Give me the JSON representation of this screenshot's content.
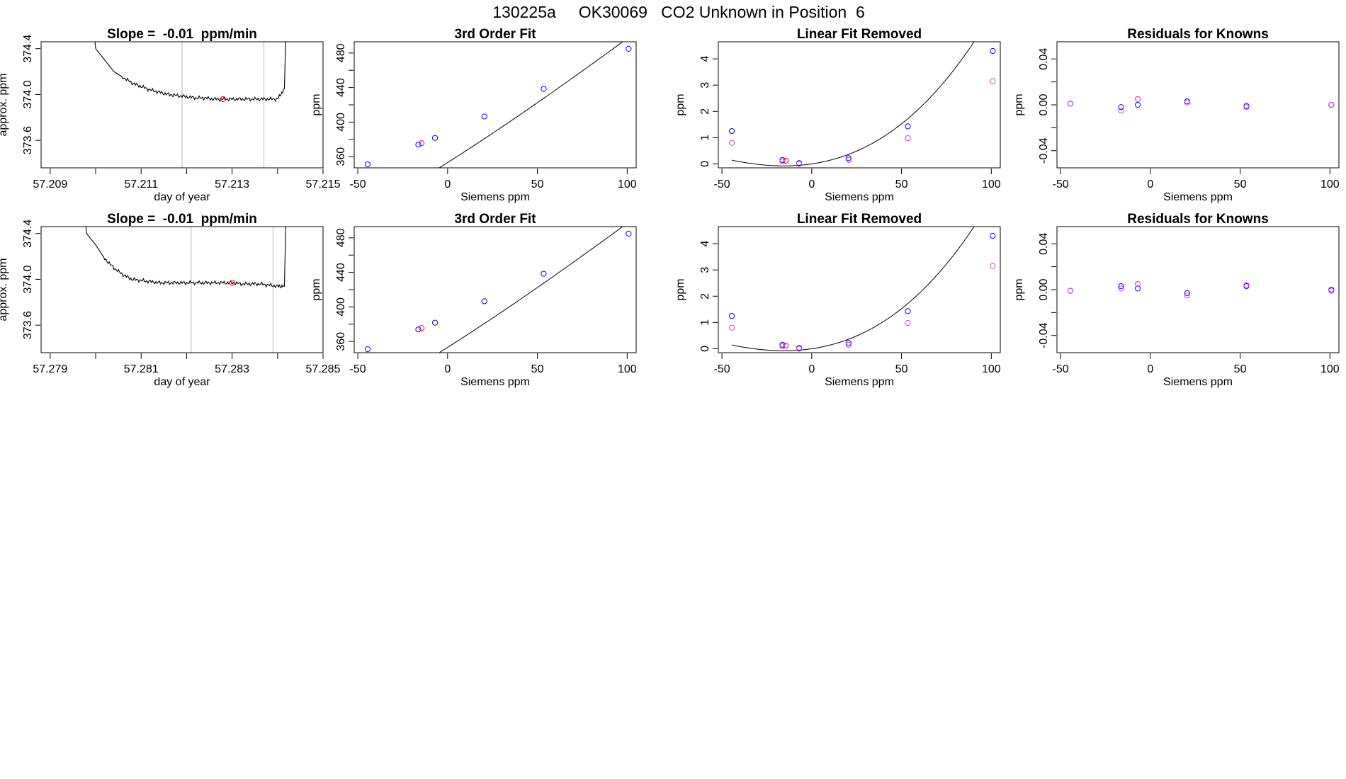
{
  "figure": {
    "title": "130225a     OK30069   CO2 Unknown in Position  6"
  },
  "chart_data": [
    {
      "type": "line",
      "title": "Slope =  -0.01  ppm/min",
      "xlabel": "day of year",
      "ylabel": "approx. ppm",
      "xlim": [
        57.2088,
        57.215
      ],
      "ylim": [
        373.36,
        374.46
      ],
      "xticks": [
        57.209,
        57.21,
        57.211,
        57.212,
        57.213,
        57.214,
        57.215
      ],
      "xticklabels": [
        "57.209",
        "",
        "57.211",
        "",
        "57.213",
        "",
        "57.215"
      ],
      "yticks": [
        373.6,
        374.0,
        374.4
      ],
      "yticklabels": [
        "373.6",
        "374.0",
        "374.4"
      ],
      "vlines": [
        57.2119,
        57.2137
      ],
      "trace": [
        [
          57.2099,
          374.8
        ],
        [
          57.21,
          374.4
        ],
        [
          57.2102,
          374.3
        ],
        [
          57.2104,
          374.2
        ],
        [
          57.2106,
          374.15
        ],
        [
          57.2108,
          374.1
        ],
        [
          57.211,
          374.07
        ],
        [
          57.2112,
          374.04
        ],
        [
          57.2114,
          374.02
        ],
        [
          57.2116,
          374.0
        ],
        [
          57.2118,
          373.99
        ],
        [
          57.212,
          373.98
        ],
        [
          57.2122,
          373.97
        ],
        [
          57.2124,
          373.97
        ],
        [
          57.2126,
          373.96
        ],
        [
          57.2128,
          373.96
        ],
        [
          57.213,
          373.96
        ],
        [
          57.2132,
          373.96
        ],
        [
          57.2134,
          373.96
        ],
        [
          57.2136,
          373.96
        ],
        [
          57.2138,
          373.96
        ],
        [
          57.214,
          373.96
        ],
        [
          57.21415,
          374.05
        ],
        [
          57.2142,
          374.8
        ]
      ],
      "highlight": [
        [
          57.2128,
          373.96
        ]
      ],
      "colors": {
        "line": "#000000",
        "vline": "#bbbbbb",
        "highlight": "#ff0000"
      }
    },
    {
      "type": "scatter",
      "title": "3rd Order Fit",
      "xlabel": "Siemens ppm",
      "ylabel": "ppm",
      "xlim": [
        -52,
        105
      ],
      "ylim": [
        347,
        493
      ],
      "xticks": [
        -50,
        0,
        50,
        100
      ],
      "xticklabels": [
        "-50",
        "0",
        "50",
        "100"
      ],
      "yticks": [
        340,
        360,
        380,
        400,
        420,
        440,
        460,
        480
      ],
      "yticklabels": [
        "",
        "360",
        "",
        "400",
        "",
        "440",
        "",
        "480"
      ],
      "fit_coef": [
        353.11,
        1.32,
        0.0015,
        -3.3e-06
      ],
      "series": [
        {
          "name": "",
          "color": "#0000ff",
          "x": [
            -44.5,
            -16.3,
            -7.0,
            20.5,
            53.5,
            100.8
          ],
          "y": [
            351.0,
            373.9,
            381.7,
            406.5,
            438.4,
            484.9
          ]
        },
        {
          "name": "",
          "color": "#ff0000",
          "x": [
            -14.5
          ],
          "y": [
            375.5
          ]
        }
      ]
    },
    {
      "type": "scatter",
      "title": "Linear Fit Removed",
      "xlabel": "Siemens ppm",
      "ylabel": "ppm",
      "xlim": [
        -52,
        105
      ],
      "ylim": [
        -0.15,
        4.65
      ],
      "xticks": [
        -50,
        0,
        50,
        100
      ],
      "xticklabels": [
        "-50",
        "0",
        "50",
        "100"
      ],
      "yticks": [
        0,
        1,
        2,
        3,
        4
      ],
      "yticklabels": [
        "0",
        "1",
        "2",
        "3",
        "4"
      ],
      "fit_coef": [
        0.0,
        0.01,
        0.00035,
        1.2e-06
      ],
      "series": [
        {
          "name": "",
          "color": "#0000ff",
          "x": [
            -44.5,
            -16.3,
            -7.0,
            20.5,
            53.5,
            100.8
          ],
          "y": [
            1.25,
            0.15,
            0.03,
            0.22,
            1.43,
            4.3
          ]
        },
        {
          "name": "",
          "color": "#dd33dd",
          "x": [
            -44.5,
            -16.3,
            -7.0,
            20.5,
            53.5,
            100.8
          ],
          "y": [
            0.8,
            0.1,
            0.0,
            0.15,
            0.98,
            3.15
          ]
        },
        {
          "name": "",
          "color": "#ff0000",
          "x": [
            -14.5
          ],
          "y": [
            0.12
          ]
        }
      ]
    },
    {
      "type": "scatter",
      "title": "Residuals for Knowns",
      "xlabel": "Siemens ppm",
      "ylabel": "ppm",
      "xlim": [
        -52,
        105
      ],
      "ylim": [
        -0.055,
        0.055
      ],
      "xticks": [
        -50,
        0,
        50,
        100
      ],
      "xticklabels": [
        "-50",
        "0",
        "50",
        "100"
      ],
      "yticks": [
        -0.04,
        -0.02,
        0.0,
        0.02,
        0.04
      ],
      "yticklabels": [
        "-0.04",
        "",
        "0.00",
        "",
        "0.04"
      ],
      "series": [
        {
          "name": "",
          "color": "#0000ff",
          "x": [
            -44.5,
            -16.3,
            -7.0,
            20.5,
            53.5,
            100.8
          ],
          "y": [
            0.001,
            -0.002,
            0.0,
            0.003,
            -0.001,
            0.0
          ]
        },
        {
          "name": "",
          "color": "#dd33dd",
          "x": [
            -44.5,
            -16.3,
            -7.0,
            20.5,
            53.5,
            100.8
          ],
          "y": [
            0.001,
            -0.005,
            0.005,
            0.002,
            -0.002,
            0.0
          ]
        }
      ]
    },
    {
      "type": "line",
      "title": "Slope =  -0.01  ppm/min",
      "xlabel": "day of year",
      "ylabel": "approx. ppm",
      "xlim": [
        57.2788,
        57.285
      ],
      "ylim": [
        373.36,
        374.46
      ],
      "xticks": [
        57.279,
        57.28,
        57.281,
        57.282,
        57.283,
        57.284,
        57.285
      ],
      "xticklabels": [
        "57.279",
        "",
        "57.281",
        "",
        "57.283",
        "",
        "57.285"
      ],
      "yticks": [
        373.6,
        374.0,
        374.4
      ],
      "yticklabels": [
        "373.6",
        "374.0",
        "374.4"
      ],
      "vlines": [
        57.2821,
        57.2839
      ],
      "trace": [
        [
          57.2797,
          374.8
        ],
        [
          57.2798,
          374.4
        ],
        [
          57.28,
          374.3
        ],
        [
          57.2802,
          374.18
        ],
        [
          57.2804,
          374.1
        ],
        [
          57.2806,
          374.04
        ],
        [
          57.2808,
          374.0
        ],
        [
          57.281,
          373.99
        ],
        [
          57.2812,
          373.98
        ],
        [
          57.2814,
          373.97
        ],
        [
          57.2816,
          373.97
        ],
        [
          57.2818,
          373.97
        ],
        [
          57.282,
          373.97
        ],
        [
          57.2822,
          373.97
        ],
        [
          57.2824,
          373.97
        ],
        [
          57.2826,
          373.97
        ],
        [
          57.2828,
          373.97
        ],
        [
          57.283,
          373.97
        ],
        [
          57.2832,
          373.96
        ],
        [
          57.2834,
          373.96
        ],
        [
          57.2836,
          373.96
        ],
        [
          57.2838,
          373.95
        ],
        [
          57.284,
          373.94
        ],
        [
          57.28415,
          373.94
        ],
        [
          57.2842,
          374.8
        ]
      ],
      "highlight": [
        [
          57.283,
          373.97
        ]
      ],
      "colors": {
        "line": "#000000",
        "vline": "#bbbbbb",
        "highlight": "#ff0000"
      }
    },
    {
      "type": "scatter",
      "title": "3rd Order Fit",
      "xlabel": "Siemens ppm",
      "ylabel": "ppm",
      "xlim": [
        -52,
        105
      ],
      "ylim": [
        347,
        493
      ],
      "xticks": [
        -50,
        0,
        50,
        100
      ],
      "xticklabels": [
        "-50",
        "0",
        "50",
        "100"
      ],
      "yticks": [
        340,
        360,
        380,
        400,
        420,
        440,
        460,
        480
      ],
      "yticklabels": [
        "",
        "360",
        "",
        "400",
        "",
        "440",
        "",
        "480"
      ],
      "fit_coef": [
        353.11,
        1.32,
        0.0015,
        -3.3e-06
      ],
      "series": [
        {
          "name": "",
          "color": "#0000ff",
          "x": [
            -44.5,
            -16.3,
            -7.0,
            20.5,
            53.5,
            100.8
          ],
          "y": [
            351.0,
            373.9,
            381.7,
            406.5,
            438.4,
            484.9
          ]
        },
        {
          "name": "",
          "color": "#ff0000",
          "x": [
            -14.5
          ],
          "y": [
            375.5
          ]
        }
      ]
    },
    {
      "type": "scatter",
      "title": "Linear Fit Removed",
      "xlabel": "Siemens ppm",
      "ylabel": "ppm",
      "xlim": [
        -52,
        105
      ],
      "ylim": [
        -0.15,
        4.65
      ],
      "xticks": [
        -50,
        0,
        50,
        100
      ],
      "xticklabels": [
        "-50",
        "0",
        "50",
        "100"
      ],
      "yticks": [
        0,
        1,
        2,
        3,
        4
      ],
      "yticklabels": [
        "0",
        "1",
        "2",
        "3",
        "4"
      ],
      "fit_coef": [
        0.0,
        0.01,
        0.00035,
        1.2e-06
      ],
      "series": [
        {
          "name": "",
          "color": "#0000ff",
          "x": [
            -44.5,
            -16.3,
            -7.0,
            20.5,
            53.5,
            100.8
          ],
          "y": [
            1.25,
            0.15,
            0.03,
            0.22,
            1.43,
            4.3
          ]
        },
        {
          "name": "",
          "color": "#dd33dd",
          "x": [
            -44.5,
            -16.3,
            -7.0,
            20.5,
            53.5,
            100.8
          ],
          "y": [
            0.8,
            0.1,
            0.0,
            0.15,
            0.98,
            3.15
          ]
        },
        {
          "name": "",
          "color": "#ff0000",
          "x": [
            -14.5
          ],
          "y": [
            0.12
          ]
        }
      ]
    },
    {
      "type": "scatter",
      "title": "Residuals for Knowns",
      "xlabel": "Siemens ppm",
      "ylabel": "ppm",
      "xlim": [
        -52,
        105
      ],
      "ylim": [
        -0.055,
        0.055
      ],
      "xticks": [
        -50,
        0,
        50,
        100
      ],
      "xticklabels": [
        "-50",
        "0",
        "50",
        "100"
      ],
      "yticks": [
        -0.04,
        -0.02,
        0.0,
        0.02,
        0.04
      ],
      "yticklabels": [
        "-0.04",
        "",
        "0.00",
        "",
        "0.04"
      ],
      "series": [
        {
          "name": "",
          "color": "#0000ff",
          "x": [
            -44.5,
            -16.3,
            -7.0,
            20.5,
            53.5,
            100.8
          ],
          "y": [
            -0.001,
            0.003,
            0.001,
            -0.003,
            0.003,
            0.0
          ]
        },
        {
          "name": "",
          "color": "#dd33dd",
          "x": [
            -44.5,
            -16.3,
            -7.0,
            20.5,
            53.5,
            100.8
          ],
          "y": [
            -0.001,
            0.001,
            0.005,
            -0.005,
            0.004,
            -0.001
          ]
        }
      ]
    }
  ]
}
